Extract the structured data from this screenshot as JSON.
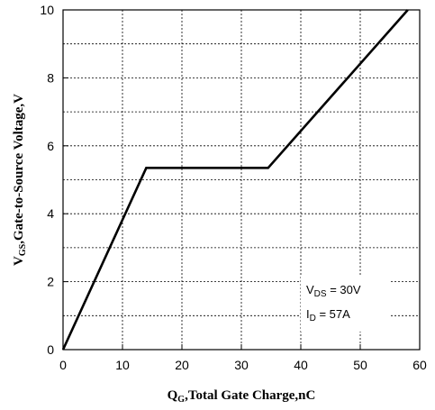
{
  "chart_data": {
    "type": "line",
    "xlabel": {
      "main": "Q",
      "sub": "G",
      "rest": ",Total Gate Charge,nC"
    },
    "ylabel": {
      "main": "V",
      "sub": "GS",
      "rest": ",Gate-to-Source Voltage,V"
    },
    "xlim": [
      0,
      60
    ],
    "ylim": [
      0,
      10
    ],
    "x_ticks": [
      0,
      10,
      20,
      30,
      40,
      50,
      60
    ],
    "y_ticks": [
      0,
      2,
      4,
      6,
      8,
      10
    ],
    "grid": true,
    "series": [
      {
        "x": [
          0,
          14,
          34.5,
          58
        ],
        "y": [
          0,
          5.35,
          5.35,
          10
        ]
      }
    ],
    "annotations": [
      {
        "main": "V",
        "sub": "DS",
        "rest": " = 30V"
      },
      {
        "main": "I",
        "sub": "D",
        "rest": " = 57A"
      }
    ]
  }
}
